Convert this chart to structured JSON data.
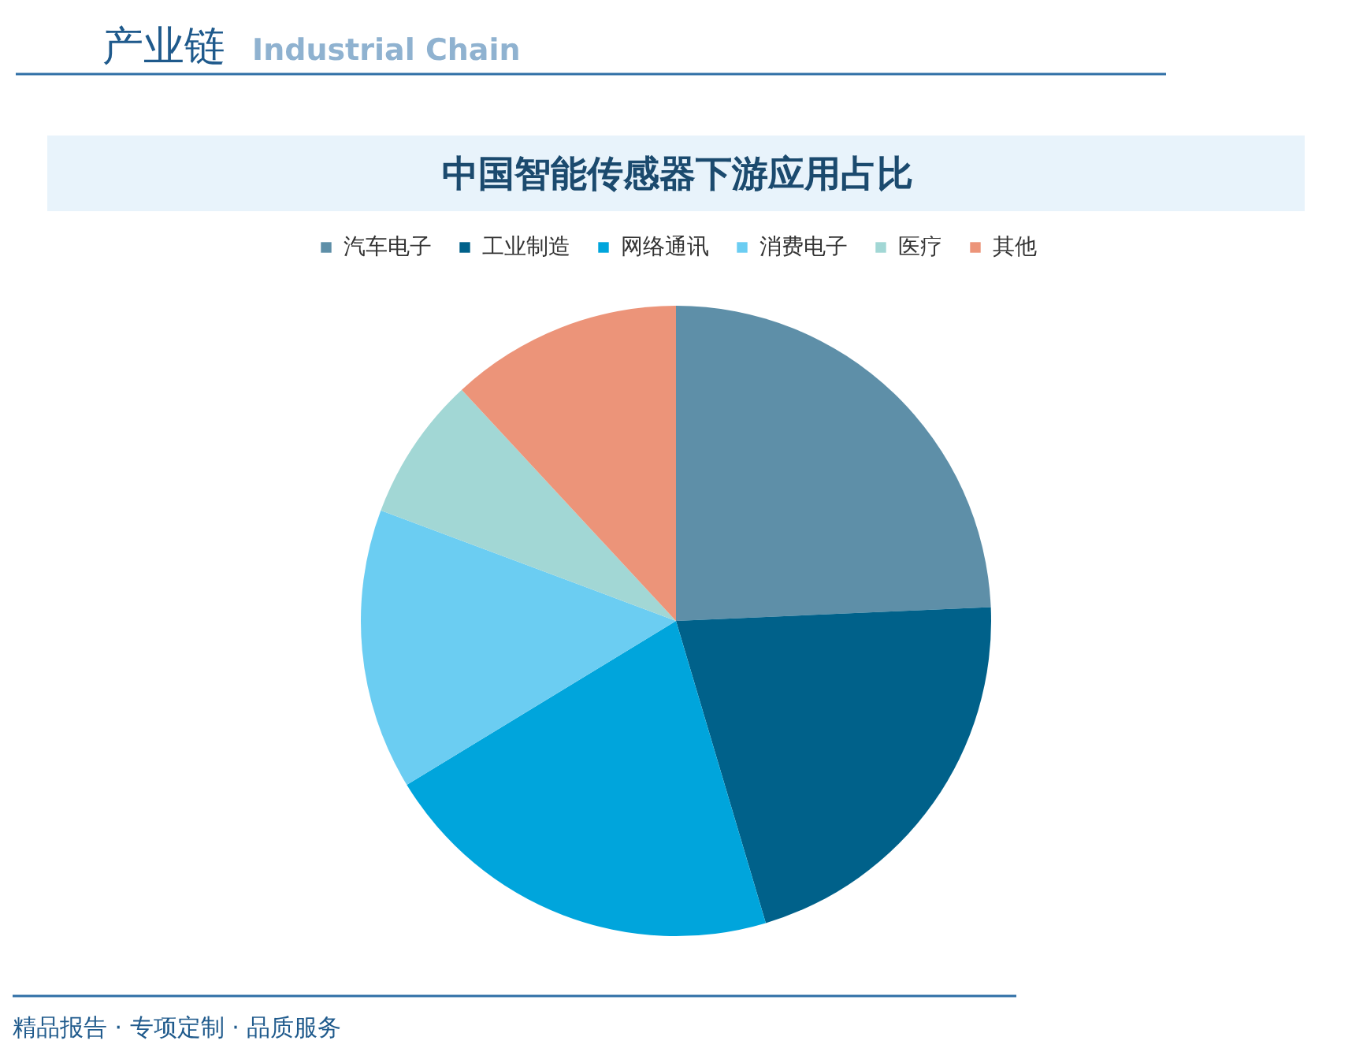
{
  "chart_data": {
    "type": "pie",
    "title": "中国智能传感器下游应用占比",
    "categories": [
      "汽车电子",
      "工业制造",
      "网络通讯",
      "消费电子",
      "医疗",
      "其他"
    ],
    "values": [
      24.3,
      21.1,
      20.9,
      14.4,
      7.4,
      11.9
    ],
    "colors": [
      "#5e8fa8",
      "#00618a",
      "#00a5dc",
      "#6bcdf2",
      "#a2d7d5",
      "#ec9479"
    ],
    "legend": "top",
    "annotations": [
      "产业链",
      "Industrial Chain",
      "精品报告 · 专项定制 · 品质服务"
    ]
  }
}
